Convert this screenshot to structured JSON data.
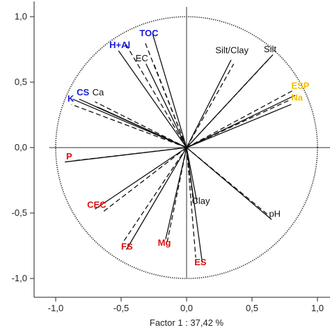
{
  "chart_data": {
    "type": "scatter",
    "subtype": "correlation-circle",
    "title": "",
    "xlabel": "Factor 1 : 37,42 %",
    "ylabel": "",
    "xlim": [
      -1.05,
      1.0
    ],
    "ylim": [
      -1.1,
      1.1
    ],
    "x_ticks": [
      "-1,0",
      "-0,5",
      "0,0",
      "0,5",
      "1,0"
    ],
    "x_tick_values": [
      -1.0,
      -0.5,
      0.0,
      0.5,
      1.0
    ],
    "y_ticks": [
      "1,0",
      "0,5",
      "0,0",
      "-0,5",
      "-1,0"
    ],
    "y_tick_values": [
      1.0,
      0.5,
      0.0,
      -0.5,
      -1.0
    ],
    "grid": false,
    "unit_circle": true,
    "colors": {
      "blue": "#1a1adc",
      "red": "#dd1111",
      "yellow": "#f0c000",
      "black": "#111111"
    },
    "series": [
      {
        "name": "TOC",
        "color": "blue",
        "loading": {
          "x": -0.26,
          "y": 0.87
        },
        "paired": {
          "x": -0.32,
          "y": 0.81
        }
      },
      {
        "name": "H+Al",
        "color": "blue",
        "loading": {
          "x": -0.52,
          "y": 0.74
        },
        "paired": {
          "x": -0.47,
          "y": 0.8
        }
      },
      {
        "name": "EC",
        "color": "black",
        "loading": {
          "x": -0.31,
          "y": 0.64
        },
        "paired": {
          "x": -0.25,
          "y": 0.64
        }
      },
      {
        "name": "Ca",
        "color": "black",
        "loading": {
          "x": -0.68,
          "y": 0.31
        },
        "paired": {
          "x": -0.7,
          "y": 0.35
        }
      },
      {
        "name": "CS",
        "color": "blue",
        "loading": {
          "x": -0.82,
          "y": 0.37
        },
        "paired": {
          "x": -0.88,
          "y": 0.33
        }
      },
      {
        "name": "K",
        "color": "blue",
        "loading": {
          "x": -0.87,
          "y": 0.37
        }
      },
      {
        "name": "P",
        "color": "red",
        "loading": {
          "x": -0.93,
          "y": -0.11
        },
        "paired": {
          "x": -0.86,
          "y": -0.1
        }
      },
      {
        "name": "CEC",
        "color": "red",
        "loading": {
          "x": -0.7,
          "y": -0.47
        },
        "paired": {
          "x": -0.65,
          "y": -0.5
        }
      },
      {
        "name": "FS",
        "color": "red",
        "loading": {
          "x": -0.46,
          "y": -0.78
        },
        "paired": {
          "x": -0.49,
          "y": -0.73
        }
      },
      {
        "name": "Mg",
        "color": "red",
        "loading": {
          "x": -0.16,
          "y": -0.7
        },
        "paired": {
          "x": -0.15,
          "y": -0.73
        }
      },
      {
        "name": "ES",
        "color": "red",
        "loading": {
          "x": 0.12,
          "y": -0.88
        },
        "paired": {
          "x": 0.07,
          "y": -0.84
        }
      },
      {
        "name": "Clay",
        "color": "black",
        "loading": {
          "x": 0.08,
          "y": -0.42
        },
        "paired": {
          "x": 0.05,
          "y": -0.4
        }
      },
      {
        "name": "pH",
        "color": "black",
        "loading": {
          "x": 0.65,
          "y": -0.55
        },
        "paired": {
          "x": 0.63,
          "y": -0.52
        }
      },
      {
        "name": "Silt/Clay",
        "color": "black",
        "loading": {
          "x": 0.34,
          "y": 0.67
        },
        "paired": {
          "x": 0.36,
          "y": 0.64
        }
      },
      {
        "name": "Silt",
        "color": "black",
        "loading": {
          "x": 0.64,
          "y": 0.69
        },
        "paired": {
          "x": 0.66,
          "y": 0.71
        }
      },
      {
        "name": "ESP",
        "color": "yellow",
        "loading": {
          "x": 0.83,
          "y": 0.4
        },
        "paired": {
          "x": 0.82,
          "y": 0.44
        }
      },
      {
        "name": "Na",
        "color": "yellow",
        "loading": {
          "x": 0.8,
          "y": 0.33
        },
        "paired": {
          "x": 0.78,
          "y": 0.36
        }
      }
    ],
    "labels": [
      {
        "text": "TOC",
        "color": "blue",
        "bold": true,
        "x": -0.36,
        "y": 0.85
      },
      {
        "text": "H+Al",
        "color": "blue",
        "bold": true,
        "x": -0.59,
        "y": 0.76
      },
      {
        "text": "EC",
        "color": "black",
        "bold": false,
        "x": -0.39,
        "y": 0.66
      },
      {
        "text": "CS",
        "color": "blue",
        "bold": true,
        "x": -0.84,
        "y": 0.4
      },
      {
        "text": "Ca",
        "color": "black",
        "bold": false,
        "x": -0.72,
        "y": 0.4
      },
      {
        "text": "K",
        "color": "blue",
        "bold": true,
        "x": -0.91,
        "y": 0.35
      },
      {
        "text": "P",
        "color": "red",
        "bold": true,
        "x": -0.92,
        "y": -0.09
      },
      {
        "text": "CEC",
        "color": "red",
        "bold": true,
        "x": -0.76,
        "y": -0.46
      },
      {
        "text": "FS",
        "color": "red",
        "bold": true,
        "x": -0.5,
        "y": -0.78
      },
      {
        "text": "Mg",
        "color": "red",
        "bold": true,
        "x": -0.22,
        "y": -0.75
      },
      {
        "text": "ES",
        "color": "red",
        "bold": true,
        "x": 0.06,
        "y": -0.9
      },
      {
        "text": "Clay",
        "color": "black",
        "bold": false,
        "x": 0.04,
        "y": -0.43
      },
      {
        "text": "pH",
        "color": "black",
        "bold": false,
        "x": 0.63,
        "y": -0.53
      },
      {
        "text": "Silt/Clay",
        "color": "black",
        "bold": false,
        "x": 0.22,
        "y": 0.72
      },
      {
        "text": "Silt",
        "color": "black",
        "bold": false,
        "x": 0.59,
        "y": 0.73
      },
      {
        "text": "ESP",
        "color": "yellow",
        "bold": true,
        "x": 0.8,
        "y": 0.45
      },
      {
        "text": "Na",
        "color": "yellow",
        "bold": true,
        "x": 0.8,
        "y": 0.36
      }
    ]
  }
}
